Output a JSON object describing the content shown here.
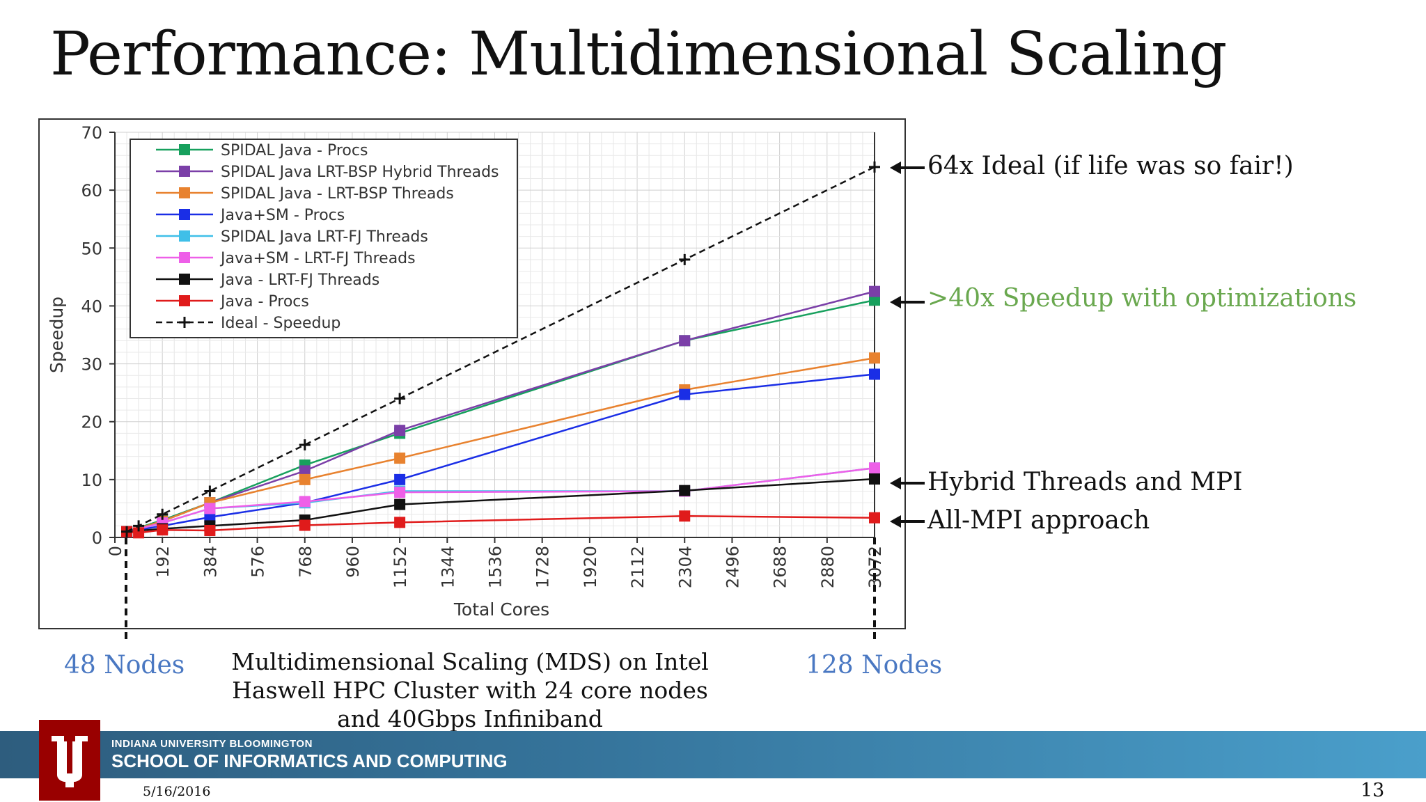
{
  "slide": {
    "title": "Performance: Multidimensional Scaling",
    "annotations": {
      "ideal": "64x Ideal (if life was so fair!)",
      "speedup": ">40x Speedup with optimizations",
      "hybrid": "Hybrid Threads and MPI",
      "allmpi": "All-MPI approach"
    },
    "nodes_left": "48 Nodes",
    "nodes_right": "128 Nodes",
    "caption": "Multidimensional Scaling (MDS) on Intel Haswell HPC  Cluster with 24 core nodes and 40Gbps Infiniband",
    "footer": {
      "university": "INDIANA UNIVERSITY BLOOMINGTON",
      "school": "SCHOOL OF INFORMATICS AND COMPUTING",
      "date": "5/16/2016",
      "page": "13"
    },
    "colors": {
      "green_annotation": "#6aa84f",
      "node_label": "#4a78c2",
      "logo_red": "#990000"
    }
  },
  "chart_data": {
    "type": "line",
    "xlabel": "Total Cores",
    "ylabel": "Speedup",
    "xlim": [
      0,
      3072
    ],
    "ylim": [
      0,
      70
    ],
    "xticks": [
      0,
      192,
      384,
      576,
      768,
      960,
      1152,
      1344,
      1536,
      1728,
      1920,
      2112,
      2304,
      2496,
      2688,
      2880,
      3072
    ],
    "yticks": [
      0,
      10,
      20,
      30,
      40,
      50,
      60,
      70
    ],
    "grid": true,
    "legend_position": "top-left",
    "series": [
      {
        "name": "SPIDAL Java - Procs",
        "color": "#17a05d",
        "marker": "square",
        "points": [
          [
            48,
            1
          ],
          [
            192,
            3
          ],
          [
            384,
            6
          ],
          [
            768,
            12.5
          ],
          [
            1152,
            18
          ],
          [
            2304,
            34
          ],
          [
            3072,
            41
          ]
        ]
      },
      {
        "name": "SPIDAL Java LRT-BSP Hybrid Threads",
        "color": "#7b3fa8",
        "marker": "square",
        "points": [
          [
            48,
            1
          ],
          [
            192,
            2.8
          ],
          [
            384,
            6
          ],
          [
            768,
            11.5
          ],
          [
            1152,
            18.5
          ],
          [
            2304,
            34
          ],
          [
            3072,
            42.5
          ]
        ]
      },
      {
        "name": "SPIDAL Java - LRT-BSP Threads",
        "color": "#e8822f",
        "marker": "square",
        "points": [
          [
            48,
            1
          ],
          [
            192,
            2.8
          ],
          [
            384,
            6
          ],
          [
            768,
            10
          ],
          [
            1152,
            13.7
          ],
          [
            2304,
            25.5
          ],
          [
            3072,
            31
          ]
        ]
      },
      {
        "name": "Java+SM - Procs",
        "color": "#1a2ee6",
        "marker": "square",
        "points": [
          [
            48,
            1
          ],
          [
            192,
            2
          ],
          [
            384,
            3.5
          ],
          [
            768,
            6
          ],
          [
            1152,
            10
          ],
          [
            2304,
            24.7
          ],
          [
            3072,
            28.2
          ]
        ]
      },
      {
        "name": "SPIDAL Java LRT-FJ Threads",
        "color": "#3fbfe8",
        "marker": "square",
        "points": [
          [
            48,
            1
          ],
          [
            192,
            2.5
          ],
          [
            384,
            5
          ],
          [
            768,
            6
          ],
          [
            1152,
            8
          ],
          [
            2304,
            8
          ],
          [
            3072,
            12
          ]
        ]
      },
      {
        "name": "Java+SM - LRT-FJ Threads",
        "color": "#ee5fe8",
        "marker": "square",
        "points": [
          [
            48,
            1
          ],
          [
            192,
            2.5
          ],
          [
            384,
            5
          ],
          [
            768,
            6.2
          ],
          [
            1152,
            7.8
          ],
          [
            2304,
            8
          ],
          [
            3072,
            12
          ]
        ]
      },
      {
        "name": "Java - LRT-FJ Threads",
        "color": "#111111",
        "marker": "square",
        "points": [
          [
            48,
            1
          ],
          [
            192,
            1.5
          ],
          [
            384,
            2
          ],
          [
            768,
            3
          ],
          [
            1152,
            5.7
          ],
          [
            2304,
            8.1
          ],
          [
            3072,
            10.1
          ]
        ]
      },
      {
        "name": "Java - Procs",
        "color": "#e01b1b",
        "marker": "square",
        "points": [
          [
            48,
            1
          ],
          [
            96,
            0.8
          ],
          [
            192,
            1.3
          ],
          [
            384,
            1.2
          ],
          [
            768,
            2.1
          ],
          [
            1152,
            2.6
          ],
          [
            2304,
            3.7
          ],
          [
            3072,
            3.4
          ]
        ]
      },
      {
        "name": "Ideal - Speedup",
        "color": "#111111",
        "marker": "plus",
        "dashed": true,
        "points": [
          [
            48,
            1
          ],
          [
            96,
            2
          ],
          [
            192,
            4
          ],
          [
            384,
            8
          ],
          [
            768,
            16
          ],
          [
            1152,
            24
          ],
          [
            2304,
            48
          ],
          [
            3072,
            64
          ]
        ]
      }
    ]
  }
}
